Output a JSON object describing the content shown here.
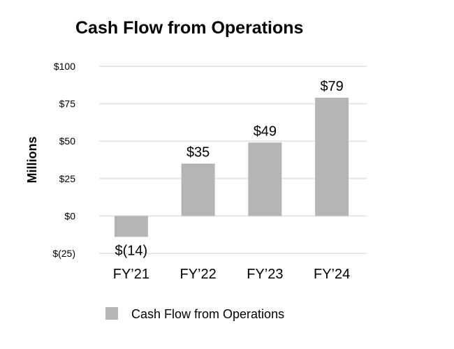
{
  "chart_data": {
    "type": "bar",
    "title": "Cash Flow from Operations",
    "ylabel": "Millions",
    "xlabel": "",
    "categories": [
      "FY’21",
      "FY’22",
      "FY’23",
      "FY’24"
    ],
    "series": [
      {
        "name": "Cash Flow from Operations",
        "values": [
          -14,
          35,
          49,
          79
        ],
        "labels": [
          "$(14)",
          "$35",
          "$49",
          "$79"
        ],
        "color": "#b5b5b5"
      }
    ],
    "ylim": [
      -25,
      100
    ],
    "yticks": [
      100,
      75,
      50,
      25,
      0,
      -25
    ],
    "ytick_labels": [
      "$100",
      "$75",
      "$50",
      "$25",
      "$0",
      "$(25)"
    ],
    "grid": true,
    "legend": "bottom"
  }
}
